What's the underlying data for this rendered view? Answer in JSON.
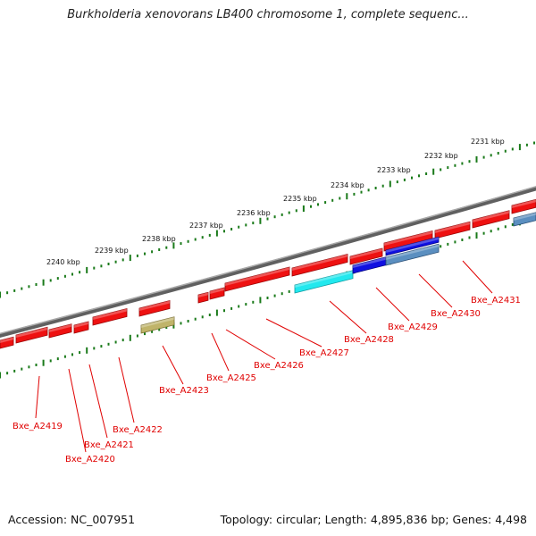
{
  "title": "Burkholderia xenovorans LB400 chromosome 1, complete sequenc...",
  "footer": {
    "accession": "Accession: NC_007951",
    "summary": "Topology: circular; Length: 4,895,836 bp; Genes: 4,498"
  },
  "colors": {
    "backbone": "#7a7a7a",
    "tick": "#1a7a1a",
    "gene": "#ee1111",
    "label": "#e00000",
    "highlight_cyan": "#22e8ee",
    "highlight_blue": "#1010e0",
    "highlight_steel": "#5b8fc0",
    "highlight_olive": "#c0b46a"
  },
  "scale_labels": [
    "2231 kbp",
    "2232 kbp",
    "2233 kbp",
    "2234 kbp",
    "2235 kbp",
    "2236 kbp",
    "2237 kbp",
    "2238 kbp",
    "2239 kbp",
    "2240 kbp"
  ],
  "gene_labels": [
    "Bxe_A2419",
    "Bxe_A2420",
    "Bxe_A2421",
    "Bxe_A2422",
    "Bxe_A2423",
    "Bxe_A2425",
    "Bxe_A2426",
    "Bxe_A2427",
    "Bxe_A2428",
    "Bxe_A2429",
    "Bxe_A2430",
    "Bxe_A2431"
  ]
}
